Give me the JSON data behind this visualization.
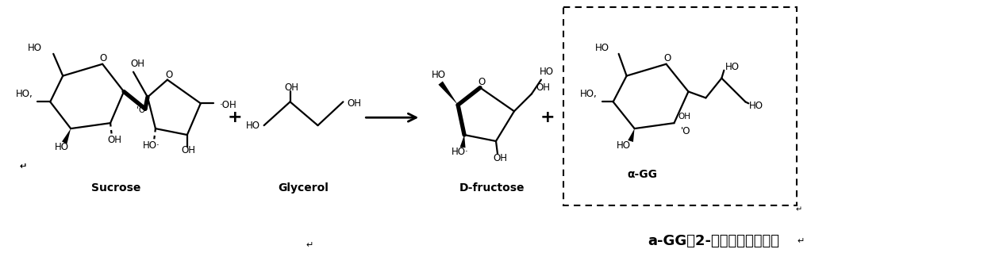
{
  "background_color": "#ffffff",
  "fig_width": 12.4,
  "fig_height": 3.48,
  "dpi": 100,
  "label_sucrose": "Sucrose",
  "label_glycerol": "Glycerol",
  "label_dfructose": "D-fructose",
  "label_agg": "α-GG",
  "label_agg_full": "a-GG（2-位甘油葡萄糖苷）",
  "font_size_labels": 10,
  "font_size_agg_full": 13,
  "font_size_chem": 8.5,
  "lw": 1.6,
  "lw_bold": 3.8
}
